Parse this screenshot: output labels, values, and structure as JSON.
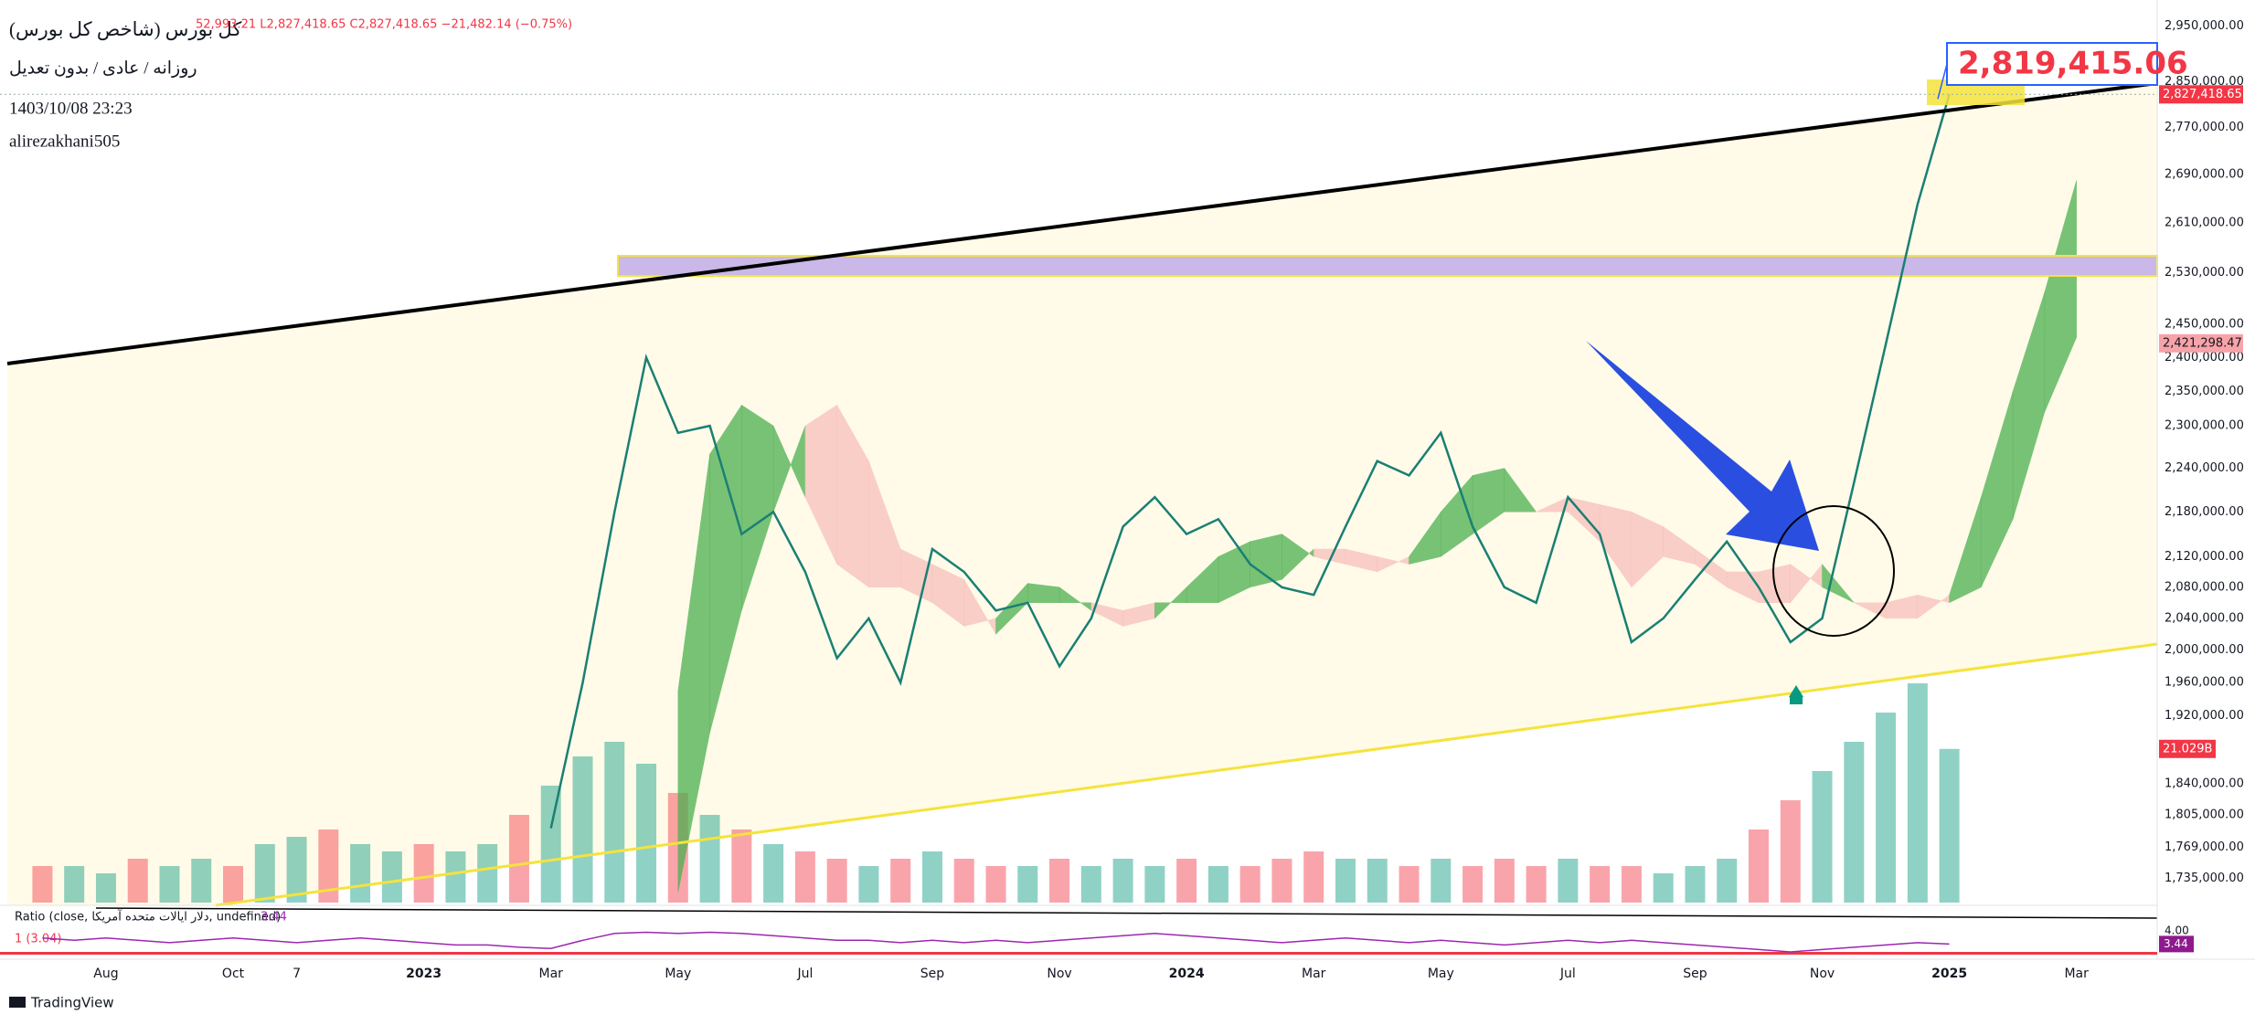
{
  "chart_data": {
    "type": "line",
    "title": "کل بورس (شاخص کل بورس)",
    "ohlc_text": "52,993.21 L2,827,418.65 C2,827,418.65 −21,482.14 (−0.75%)",
    "subtitle": "روزانه / عادی / بدون تعدیل",
    "timestamp": "1403/10/08 23:23",
    "author": "alirezakhani505",
    "brand": "TradingView",
    "log_scale": true,
    "grid": false,
    "color_up": "#089981",
    "color_down": "#f23645",
    "line_color": "#1b7f74",
    "categories": [
      null,
      null,
      "Aug",
      null,
      null,
      null,
      "Oct",
      null,
      "7",
      null,
      null,
      null,
      "2023",
      null,
      null,
      null,
      "Mar",
      null,
      null,
      null,
      "May",
      null,
      null,
      null,
      "Jul",
      null,
      null,
      null,
      "Sep",
      null,
      null,
      null,
      "Nov",
      null,
      null,
      null,
      "2024",
      null,
      null,
      null,
      "Mar",
      null,
      null,
      null,
      "May",
      null,
      null,
      null,
      "Jul",
      null,
      null,
      null,
      "Sep",
      null,
      null,
      null,
      "Nov",
      null,
      null,
      null,
      "2025",
      null,
      null,
      null,
      "Mar",
      null,
      null
    ],
    "values": [
      null,
      null,
      null,
      null,
      null,
      null,
      null,
      null,
      null,
      null,
      null,
      null,
      null,
      null,
      null,
      null,
      1790000,
      1960000,
      2180000,
      2400000,
      2290000,
      2300000,
      2150000,
      2180000,
      2100000,
      1990000,
      2040000,
      1960000,
      2130000,
      2100000,
      2050000,
      2060000,
      1980000,
      2040000,
      2160000,
      2200000,
      2150000,
      2170000,
      2110000,
      2080000,
      2070000,
      2160000,
      2250000,
      2230000,
      2290000,
      2160000,
      2080000,
      2060000,
      2200000,
      2150000,
      2010000,
      2040000,
      2090000,
      2140000,
      2080000,
      2010000,
      2040000,
      2220000,
      2420000,
      2640000,
      2827418.65,
      null,
      null,
      null,
      null,
      null,
      null
    ],
    "ylim": [
      1709000,
      2985000
    ],
    "yticks": [
      {
        "value": 2950000,
        "label": "2,950,000.00"
      },
      {
        "value": 2850000,
        "label": "2,850,000.00"
      },
      {
        "value": 2770000,
        "label": "2,770,000.00"
      },
      {
        "value": 2690000,
        "label": "2,690,000.00"
      },
      {
        "value": 2610000,
        "label": "2,610,000.00"
      },
      {
        "value": 2530000,
        "label": "2,530,000.00"
      },
      {
        "value": 2450000,
        "label": "2,450,000.00"
      },
      {
        "value": 2400000,
        "label": "2,400,000.00"
      },
      {
        "value": 2350000,
        "label": "2,350,000.00"
      },
      {
        "value": 2300000,
        "label": "2,300,000.00"
      },
      {
        "value": 2240000,
        "label": "2,240,000.00"
      },
      {
        "value": 2180000,
        "label": "2,180,000.00"
      },
      {
        "value": 2120000,
        "label": "2,120,000.00"
      },
      {
        "value": 2080000,
        "label": "2,080,000.00"
      },
      {
        "value": 2040000,
        "label": "2,040,000.00"
      },
      {
        "value": 2000000,
        "label": "2,000,000.00"
      },
      {
        "value": 1960000,
        "label": "1,960,000.00"
      },
      {
        "value": 1920000,
        "label": "1,920,000.00"
      },
      {
        "value": 1840000,
        "label": "1,840,000.00"
      },
      {
        "value": 1805000,
        "label": "1,805,000.00"
      },
      {
        "value": 1769000,
        "label": "1,769,000.00"
      },
      {
        "value": 1735000,
        "label": "1,735,000.00"
      }
    ],
    "last_price": {
      "value": 2827418.65,
      "label": "2,827,418.65"
    },
    "marker_label": {
      "value": 2819415.06,
      "label": "2,819,415.06"
    },
    "level_label": {
      "value": 2421298.47,
      "label": "2,421,298.47"
    },
    "volume": {
      "values": [
        5,
        5,
        4,
        6,
        5,
        6,
        5,
        8,
        9,
        10,
        8,
        7,
        8,
        7,
        8,
        12,
        16,
        20,
        22,
        19,
        15,
        12,
        10,
        8,
        7,
        6,
        5,
        6,
        7,
        6,
        5,
        5,
        6,
        5,
        6,
        5,
        6,
        5,
        5,
        6,
        7,
        6,
        6,
        5,
        6,
        5,
        6,
        5,
        6,
        5,
        5,
        4,
        5,
        6,
        10,
        14,
        18,
        22,
        26,
        30,
        21.029,
        null,
        null,
        null,
        null,
        null,
        null
      ],
      "last_label": {
        "value": 21.029,
        "label": "21.029B"
      }
    },
    "ichimoku": {
      "color_up": "#4caf50",
      "color_down": "#f7b7b5",
      "span_a": [
        null,
        null,
        null,
        null,
        null,
        null,
        null,
        null,
        null,
        null,
        null,
        null,
        null,
        null,
        null,
        null,
        null,
        null,
        null,
        null,
        1950000,
        2260000,
        2330000,
        2300000,
        2200000,
        2110000,
        2080000,
        2080000,
        2060000,
        2030000,
        2040000,
        2085000,
        2080000,
        2050000,
        2030000,
        2040000,
        2080000,
        2120000,
        2140000,
        2150000,
        2120000,
        2110000,
        2100000,
        2120000,
        2180000,
        2230000,
        2240000,
        2180000,
        2180000,
        2140000,
        2080000,
        2120000,
        2110000,
        2080000,
        2060000,
        2060000,
        2110000,
        2060000,
        2040000,
        2040000,
        2070000,
        2200000,
        2350000,
        2500000,
        2680000,
        null,
        null
      ],
      "span_b": [
        null,
        null,
        null,
        null,
        null,
        null,
        null,
        null,
        null,
        null,
        null,
        null,
        null,
        null,
        null,
        null,
        null,
        null,
        null,
        null,
        1720000,
        1900000,
        2050000,
        2180000,
        2300000,
        2330000,
        2250000,
        2130000,
        2110000,
        2090000,
        2020000,
        2060000,
        2060000,
        2060000,
        2050000,
        2060000,
        2060000,
        2060000,
        2080000,
        2090000,
        2130000,
        2130000,
        2120000,
        2110000,
        2120000,
        2150000,
        2180000,
        2180000,
        2200000,
        2190000,
        2180000,
        2160000,
        2130000,
        2100000,
        2100000,
        2110000,
        2080000,
        2060000,
        2060000,
        2070000,
        2060000,
        2080000,
        2170000,
        2320000,
        2430000,
        null,
        null
      ]
    },
    "indicator": {
      "title": "Ratio (close, دلار ایالات متحده آمریکا, undefined)",
      "color": "#9c27b0",
      "last": 3.44,
      "reference": {
        "value": 3.04,
        "label": "1 (3.04)"
      },
      "reference_color": "#f23645",
      "ylim": [
        2.94,
        5.0
      ],
      "yticks": [
        {
          "value": 4,
          "label": "4.00"
        }
      ],
      "values": [
        3.7,
        3.6,
        3.7,
        3.6,
        3.5,
        3.6,
        3.7,
        3.6,
        3.5,
        3.6,
        3.7,
        3.6,
        3.5,
        3.4,
        3.4,
        3.3,
        3.25,
        3.6,
        3.9,
        3.95,
        3.9,
        3.95,
        3.9,
        3.8,
        3.7,
        3.6,
        3.6,
        3.5,
        3.6,
        3.5,
        3.6,
        3.5,
        3.6,
        3.7,
        3.8,
        3.9,
        3.8,
        3.7,
        3.6,
        3.5,
        3.6,
        3.7,
        3.6,
        3.5,
        3.6,
        3.5,
        3.4,
        3.5,
        3.6,
        3.5,
        3.6,
        3.5,
        3.4,
        3.3,
        3.2,
        3.1,
        3.2,
        3.3,
        3.4,
        3.5,
        3.44,
        null,
        null,
        null,
        null,
        null,
        null
      ]
    }
  }
}
